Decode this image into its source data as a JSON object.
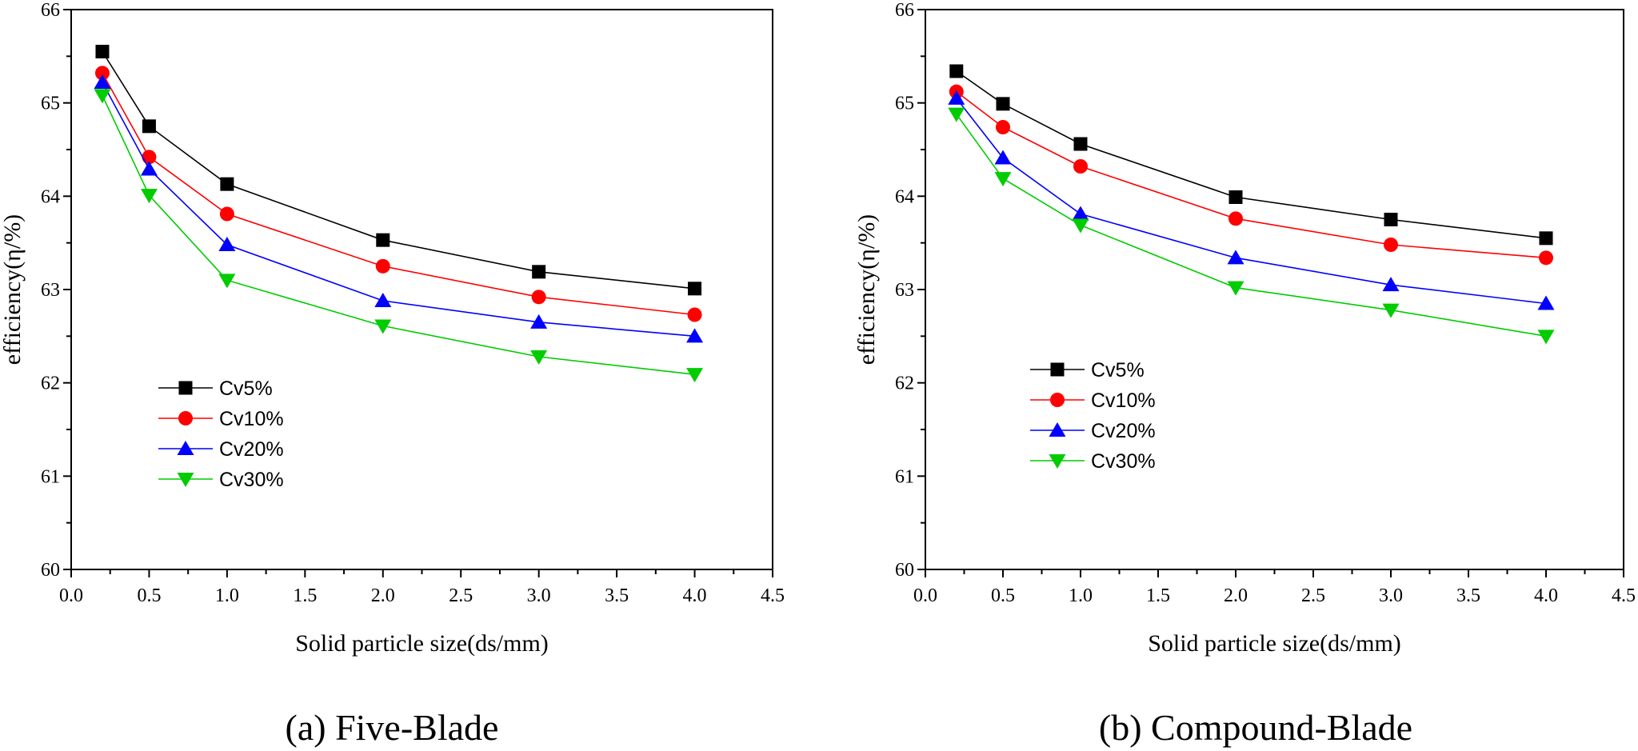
{
  "chart_data": [
    {
      "type": "line",
      "caption": "(a) Five-Blade",
      "xlabel": "Solid particle size(ds/mm)",
      "ylabel": "efficiency(η/%)",
      "xlim": [
        0.0,
        4.5
      ],
      "ylim": [
        60,
        66
      ],
      "xticks": [
        "0.0",
        "0.5",
        "1.0",
        "1.5",
        "2.0",
        "2.5",
        "3.0",
        "3.5",
        "4.0",
        "4.5"
      ],
      "yticks": [
        "60",
        "61",
        "62",
        "63",
        "64",
        "65",
        "66"
      ],
      "legend_position": "center-left",
      "x": [
        0.2,
        0.5,
        1.0,
        2.0,
        3.0,
        4.0
      ],
      "series": [
        {
          "name": "Cv5%",
          "marker": "square",
          "color": "#000000",
          "values": [
            65.55,
            64.75,
            64.13,
            63.53,
            63.19,
            63.01
          ]
        },
        {
          "name": "Cv10%",
          "marker": "circle",
          "color": "#ff0000",
          "values": [
            65.32,
            64.42,
            63.81,
            63.25,
            62.92,
            62.73
          ]
        },
        {
          "name": "Cv20%",
          "marker": "triangle-up",
          "color": "#0000ff",
          "values": [
            65.22,
            64.29,
            63.48,
            62.88,
            62.65,
            62.5
          ]
        },
        {
          "name": "Cv30%",
          "marker": "triangle-down",
          "color": "#00cc00",
          "values": [
            65.08,
            64.01,
            63.1,
            62.61,
            62.28,
            62.09
          ]
        }
      ]
    },
    {
      "type": "line",
      "caption": "(b) Compound-Blade",
      "xlabel": "Solid particle size(ds/mm)",
      "ylabel": "efficiency(η/%)",
      "xlim": [
        0.0,
        4.5
      ],
      "ylim": [
        60,
        66
      ],
      "xticks": [
        "0.0",
        "0.5",
        "1.0",
        "1.5",
        "2.0",
        "2.5",
        "3.0",
        "3.5",
        "4.0",
        "4.5"
      ],
      "yticks": [
        "60",
        "61",
        "62",
        "63",
        "64",
        "65",
        "66"
      ],
      "legend_position": "center-left",
      "x": [
        0.2,
        0.5,
        1.0,
        2.0,
        3.0,
        4.0
      ],
      "series": [
        {
          "name": "Cv5%",
          "marker": "square",
          "color": "#000000",
          "values": [
            65.34,
            64.99,
            64.56,
            63.99,
            63.75,
            63.55
          ]
        },
        {
          "name": "Cv10%",
          "marker": "circle",
          "color": "#ff0000",
          "values": [
            65.12,
            64.74,
            64.32,
            63.76,
            63.48,
            63.34
          ]
        },
        {
          "name": "Cv20%",
          "marker": "triangle-up",
          "color": "#0000ff",
          "values": [
            65.05,
            64.41,
            63.81,
            63.34,
            63.05,
            62.85
          ]
        },
        {
          "name": "Cv30%",
          "marker": "triangle-down",
          "color": "#00cc00",
          "values": [
            64.88,
            64.19,
            63.69,
            63.02,
            62.78,
            62.5
          ]
        }
      ]
    }
  ]
}
